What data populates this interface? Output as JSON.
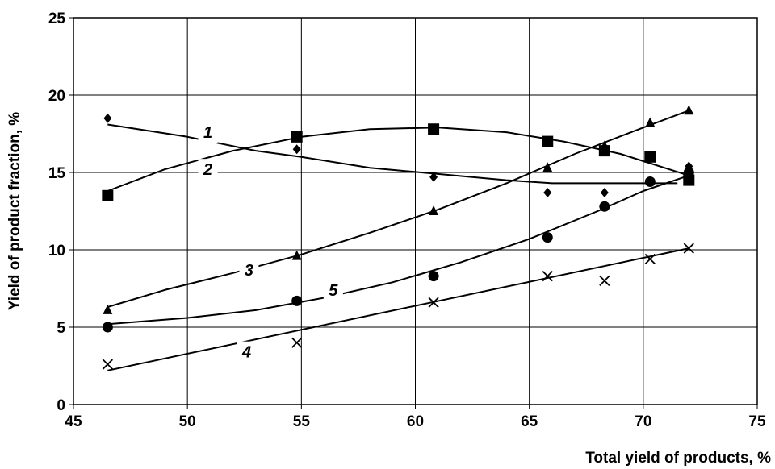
{
  "chart_data": {
    "type": "scatter",
    "xlabel": "Total yield of products, %",
    "ylabel": "Yield of product fraction, %",
    "xlim": [
      45,
      75
    ],
    "ylim": [
      0,
      25
    ],
    "x_ticks": [
      "45",
      "50",
      "55",
      "60",
      "65",
      "70",
      "75"
    ],
    "y_ticks": [
      "0",
      "5",
      "10",
      "15",
      "20",
      "25"
    ],
    "grid": true,
    "series": [
      {
        "label": "1",
        "marker": "diamond",
        "points": [
          [
            46.5,
            18.5
          ],
          [
            54.8,
            16.5
          ],
          [
            60.8,
            14.7
          ],
          [
            65.8,
            13.7
          ],
          [
            68.3,
            13.7
          ],
          [
            72.0,
            15.4
          ]
        ],
        "trend": [
          [
            46.5,
            18.1
          ],
          [
            50,
            17.3
          ],
          [
            53,
            16.4
          ],
          [
            55,
            16.0
          ],
          [
            58,
            15.3
          ],
          [
            61,
            14.9
          ],
          [
            64,
            14.5
          ],
          [
            66,
            14.3
          ],
          [
            68,
            14.3
          ],
          [
            71.5,
            14.3
          ]
        ]
      },
      {
        "label": "2",
        "marker": "square",
        "points": [
          [
            46.5,
            13.5
          ],
          [
            54.8,
            17.3
          ],
          [
            60.8,
            17.8
          ],
          [
            65.8,
            17.0
          ],
          [
            68.3,
            16.4
          ],
          [
            70.3,
            16.0
          ],
          [
            72.0,
            14.5
          ]
        ],
        "trend": [
          [
            46.5,
            13.8
          ],
          [
            49,
            15.2
          ],
          [
            52,
            16.4
          ],
          [
            55,
            17.3
          ],
          [
            58,
            17.8
          ],
          [
            61,
            17.9
          ],
          [
            64,
            17.6
          ],
          [
            66.5,
            17.0
          ],
          [
            69,
            16.2
          ],
          [
            72,
            14.8
          ]
        ]
      },
      {
        "label": "3",
        "marker": "triangle",
        "points": [
          [
            46.5,
            6.1
          ],
          [
            54.8,
            9.6
          ],
          [
            60.8,
            12.5
          ],
          [
            65.8,
            15.3
          ],
          [
            68.3,
            16.7
          ],
          [
            70.3,
            18.2
          ],
          [
            72.0,
            19.0
          ]
        ],
        "trend": [
          [
            46.5,
            6.3
          ],
          [
            49,
            7.4
          ],
          [
            52,
            8.5
          ],
          [
            55,
            9.7
          ],
          [
            58,
            11.1
          ],
          [
            61,
            12.6
          ],
          [
            64,
            14.3
          ],
          [
            67,
            16.2
          ],
          [
            70,
            17.9
          ],
          [
            72,
            19.0
          ]
        ]
      },
      {
        "label": "4",
        "marker": "x",
        "points": [
          [
            46.5,
            2.6
          ],
          [
            54.8,
            4.0
          ],
          [
            60.8,
            6.6
          ],
          [
            65.8,
            8.3
          ],
          [
            68.3,
            8.0
          ],
          [
            70.3,
            9.4
          ],
          [
            72.0,
            10.1
          ]
        ],
        "trend": [
          [
            46.5,
            2.2
          ],
          [
            72,
            10.1
          ]
        ]
      },
      {
        "label": "5",
        "marker": "circle",
        "points": [
          [
            46.5,
            5.0
          ],
          [
            54.8,
            6.7
          ],
          [
            60.8,
            8.3
          ],
          [
            65.8,
            10.8
          ],
          [
            68.3,
            12.8
          ],
          [
            70.3,
            14.4
          ],
          [
            72.0,
            15.0
          ]
        ],
        "trend": [
          [
            46.5,
            5.2
          ],
          [
            50,
            5.6
          ],
          [
            53,
            6.1
          ],
          [
            56,
            6.9
          ],
          [
            59,
            7.9
          ],
          [
            62,
            9.2
          ],
          [
            65,
            10.7
          ],
          [
            68,
            12.5
          ],
          [
            70,
            13.8
          ],
          [
            72,
            14.8
          ]
        ]
      }
    ]
  }
}
